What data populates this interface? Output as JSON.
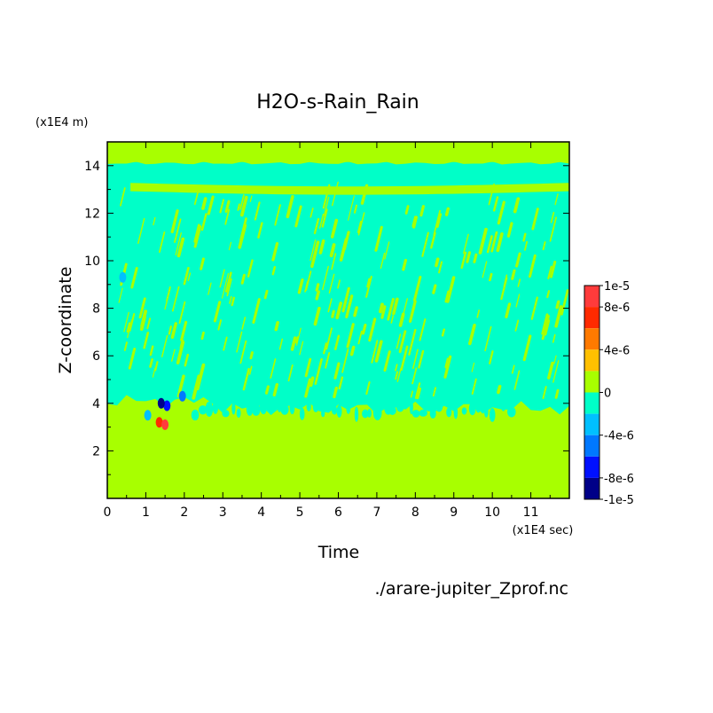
{
  "chart_data": {
    "type": "heatmap",
    "title": "H2O-s-Rain_Rain",
    "xlabel": "Time",
    "ylabel": "Z-coordinate",
    "x_unit": "(x1E4 sec)",
    "y_unit": "(x1E4 m)",
    "source_file": "./arare-jupiter_Zprof.nc",
    "xlim": [
      0,
      12
    ],
    "ylim": [
      0,
      15
    ],
    "x_ticks": [
      "0",
      "1",
      "2",
      "3",
      "4",
      "5",
      "6",
      "7",
      "8",
      "9",
      "10",
      "11"
    ],
    "y_ticks": [
      "2",
      "4",
      "6",
      "8",
      "10",
      "12",
      "14"
    ],
    "colorbar": {
      "labels": [
        "1e-5",
        "8e-6",
        "4e-6",
        "0",
        "-4e-6",
        "-8e-6",
        "-1e-5"
      ],
      "bands": [
        {
          "from": 8e-06,
          "to": 1e-05,
          "color": "#ff3b3b"
        },
        {
          "from": 6e-06,
          "to": 8e-06,
          "color": "#ff2a00"
        },
        {
          "from": 4e-06,
          "to": 6e-06,
          "color": "#ff7a00"
        },
        {
          "from": 2e-06,
          "to": 4e-06,
          "color": "#ffc000"
        },
        {
          "from": 0,
          "to": 2e-06,
          "color": "#a8ff00"
        },
        {
          "from": -2e-06,
          "to": 0,
          "color": "#00ffc8"
        },
        {
          "from": -4e-06,
          "to": -2e-06,
          "color": "#00c0ff"
        },
        {
          "from": -6e-06,
          "to": -4e-06,
          "color": "#0078ff"
        },
        {
          "from": -8e-06,
          "to": -6e-06,
          "color": "#0010ff"
        },
        {
          "from": -1e-05,
          "to": -8e-06,
          "color": "#000088"
        }
      ]
    },
    "fields": {
      "positive_base": "#a8ff00",
      "negative_base": "#00ffc8",
      "negative_layer_y_range": [
        3.8,
        14.1
      ],
      "upper_positive_bands": [
        {
          "x_range": [
            0.6,
            12
          ],
          "y_center": 13.1,
          "thickness": 0.35
        },
        {
          "x_range": [
            0.5,
            12
          ],
          "y_center": 14.3,
          "thickness": 0.3
        }
      ],
      "extreme_cells": [
        {
          "x": 1.35,
          "y": 3.2,
          "value": 6e-06
        },
        {
          "x": 1.5,
          "y": 3.1,
          "value": 8e-06
        },
        {
          "x": 1.55,
          "y": 3.9,
          "value": -8e-06
        },
        {
          "x": 1.4,
          "y": 4.0,
          "value": -1e-05
        },
        {
          "x": 1.95,
          "y": 4.3,
          "value": -6e-06
        },
        {
          "x": 1.05,
          "y": 3.5,
          "value": -4e-06
        },
        {
          "x": 0.4,
          "y": 9.3,
          "value": -4e-06
        }
      ]
    }
  }
}
